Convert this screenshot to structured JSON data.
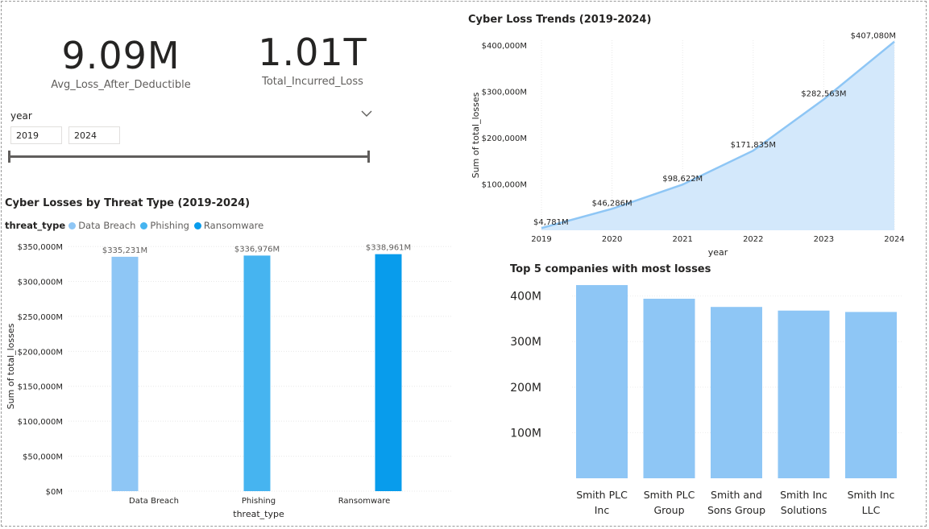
{
  "kpis": [
    {
      "value": "9.09M",
      "label": "Avg_Loss_After_Deductible"
    },
    {
      "value": "1.01T",
      "label": "Total_Incurred_Loss"
    }
  ],
  "slicer": {
    "title": "year",
    "start": "2019",
    "end": "2024"
  },
  "colors": {
    "light_blue": "#8ec6f5",
    "mid_blue": "#46b4f0",
    "dark_blue": "#089cec",
    "area_fill": "#d3e8fb",
    "area_line": "#8ec6f5",
    "axis_text": "#252423"
  },
  "chart_data": [
    {
      "type": "area",
      "title": "Cyber Loss Trends (2019-2024)",
      "xlabel": "year",
      "ylabel": "Sum of total_losses",
      "x": [
        2019,
        2020,
        2021,
        2022,
        2023,
        2024
      ],
      "values": [
        4781,
        46286,
        98622,
        171835,
        282563,
        407080
      ],
      "data_labels": [
        "$4,781M",
        "$46,286M",
        "$98,622M",
        "$171,835M",
        "$282,563M",
        "$407,080M"
      ],
      "yticks": [
        "$100,000M",
        "$200,000M",
        "$300,000M",
        "$400,000M"
      ],
      "ytick_values": [
        100000,
        200000,
        300000,
        400000
      ],
      "ylim": [
        0,
        410000
      ],
      "grid": true
    },
    {
      "type": "bar",
      "title": "Cyber Losses by Threat Type (2019-2024)",
      "xlabel": "threat_type",
      "ylabel": "Sum of total_losses",
      "legend_title": "threat_type",
      "legend": "top-left",
      "categories": [
        "Data Breach",
        "Phishing",
        "Ransomware"
      ],
      "values": [
        335231,
        336976,
        338961
      ],
      "data_labels": [
        "$335,231M",
        "$336,976M",
        "$338,961M"
      ],
      "yticks": [
        "$0M",
        "$50,000M",
        "$100,000M",
        "$150,000M",
        "$200,000M",
        "$250,000M",
        "$300,000M",
        "$350,000M"
      ],
      "ytick_values": [
        0,
        50000,
        100000,
        150000,
        200000,
        250000,
        300000,
        350000
      ],
      "ylim": [
        0,
        357000
      ],
      "grid": true
    },
    {
      "type": "bar",
      "title": "Top 5 companies with most losses",
      "categories": [
        [
          "Smith PLC",
          "Inc"
        ],
        [
          "Smith PLC",
          "Group"
        ],
        [
          "Smith and",
          "Sons Group"
        ],
        [
          "Smith Inc",
          "Solutions"
        ],
        [
          "Smith Inc",
          "LLC"
        ]
      ],
      "values": [
        424,
        394,
        376,
        368,
        365
      ],
      "yticks": [
        "100M",
        "200M",
        "300M",
        "400M"
      ],
      "ytick_values": [
        100,
        200,
        300,
        400
      ],
      "ylim": [
        0,
        440
      ],
      "grid": true
    }
  ]
}
